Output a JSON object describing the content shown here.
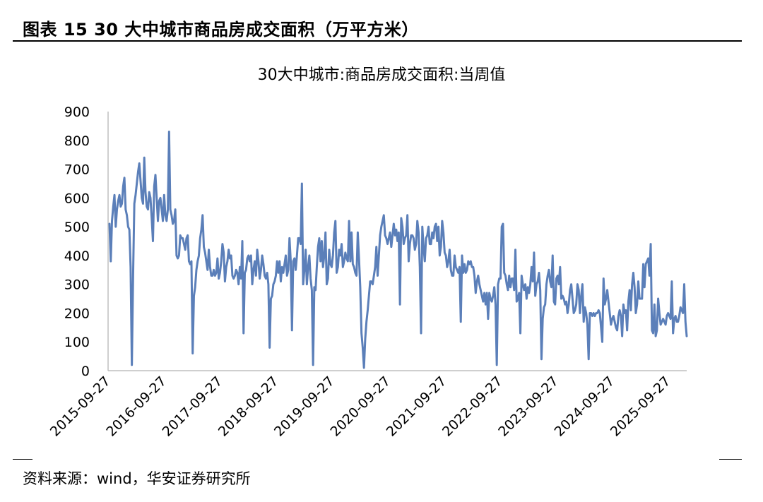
{
  "figure": {
    "title": "图表 15 30 大中城市商品房成交面积（万平方米）",
    "source": "资料来源：wind，华安证券研究所"
  },
  "chart_data": {
    "type": "line",
    "title": "30大中城市:商品房成交面积:当周值",
    "xlabel": "",
    "ylabel": "",
    "ylim": [
      0,
      900
    ],
    "yticks": [
      0,
      100,
      200,
      300,
      400,
      500,
      600,
      700,
      800,
      900
    ],
    "xticks": [
      "2015-09-27",
      "2016-09-27",
      "2017-09-27",
      "2018-09-27",
      "2019-09-27",
      "2020-09-27",
      "2021-09-27",
      "2022-09-27",
      "2023-09-27",
      "2024-09-27",
      "2025-09-27"
    ],
    "x_start": "2015-09-27",
    "x_end": "2026-01-25",
    "grid": false,
    "legend": "none",
    "colors": {
      "line": "#5b7fb9",
      "axis": "#bfbfbf"
    },
    "series": [
      {
        "values": [
          510,
          380,
          520,
          570,
          610,
          500,
          560,
          590,
          610,
          570,
          580,
          640,
          670,
          560,
          540,
          500,
          490,
          360,
          20,
          330,
          580,
          610,
          650,
          690,
          720,
          660,
          600,
          580,
          740,
          620,
          570,
          560,
          620,
          600,
          530,
          450,
          640,
          680,
          600,
          520,
          590,
          600,
          560,
          520,
          610,
          540,
          520,
          560,
          830,
          560,
          540,
          510,
          520,
          560,
          400,
          390,
          400,
          470,
          460,
          460,
          440,
          420,
          460,
          470,
          380,
          370,
          380,
          60,
          260,
          290,
          350,
          380,
          400,
          460,
          490,
          540,
          430,
          410,
          380,
          350,
          420,
          360,
          330,
          330,
          350,
          330,
          340,
          390,
          320,
          340,
          380,
          440,
          410,
          310,
          360,
          380,
          420,
          390,
          400,
          330,
          320,
          330,
          350,
          340,
          300,
          360,
          320,
          450,
          130,
          340,
          350,
          390,
          400,
          380,
          400,
          300,
          350,
          380,
          330,
          420,
          380,
          320,
          350,
          400,
          370,
          330,
          320,
          340,
          300,
          80,
          250,
          260,
          300,
          310,
          330,
          380,
          340,
          380,
          310,
          360,
          340,
          370,
          400,
          330,
          350,
          460,
          380,
          140,
          380,
          390,
          350,
          400,
          460,
          460,
          440,
          650,
          300,
          350,
          420,
          300,
          360,
          400,
          320,
          280,
          20,
          290,
          280,
          360,
          430,
          460,
          380,
          450,
          360,
          400,
          480,
          300,
          320,
          420,
          370,
          360,
          400,
          480,
          520,
          340,
          360,
          420,
          400,
          440,
          360,
          380,
          410,
          390,
          380,
          520,
          380,
          480,
          370,
          360,
          340,
          330,
          480,
          390,
          290,
          130,
          80,
          10,
          110,
          170,
          210,
          260,
          310,
          310,
          300,
          330,
          360,
          430,
          330,
          400,
          470,
          500,
          520,
          540,
          470,
          460,
          440,
          460,
          480,
          430,
          470,
          510,
          470,
          490,
          450,
          480,
          230,
          530,
          500,
          440,
          460,
          470,
          540,
          380,
          440,
          470,
          470,
          460,
          420,
          440,
          520,
          480,
          360,
          130,
          500,
          430,
          380,
          460,
          470,
          500,
          440,
          440,
          480,
          460,
          500,
          510,
          450,
          500,
          400,
          430,
          520,
          480,
          410,
          400,
          360,
          380,
          420,
          350,
          330,
          330,
          400,
          360,
          350,
          340,
          360,
          170,
          400,
          340,
          370,
          340,
          350,
          380,
          370,
          380,
          360,
          360,
          330,
          270,
          310,
          330,
          300,
          280,
          260,
          240,
          270,
          230,
          270,
          180,
          270,
          250,
          240,
          260,
          290,
          230,
          20,
          300,
          320,
          320,
          500,
          510,
          340,
          330,
          300,
          280,
          330,
          290,
          320,
          320,
          280,
          420,
          240,
          250,
          270,
          130,
          330,
          300,
          280,
          300,
          250,
          290,
          270,
          300,
          360,
          310,
          410,
          260,
          300,
          310,
          340,
          280,
          40,
          180,
          220,
          230,
          300,
          330,
          350,
          310,
          290,
          400,
          240,
          230,
          320,
          330,
          300,
          360,
          250,
          260,
          250,
          230,
          240,
          200,
          230,
          280,
          300,
          250,
          200,
          210,
          230,
          300,
          280,
          200,
          260,
          300,
          170,
          220,
          200,
          160,
          40,
          200,
          200,
          190,
          200,
          190,
          200,
          200,
          210,
          200,
          150,
          100,
          320,
          230,
          250,
          280,
          240,
          200,
          160,
          180,
          190,
          170,
          150,
          140,
          190,
          210,
          190,
          120,
          230,
          200,
          210,
          140,
          240,
          280,
          210,
          300,
          340,
          290,
          200,
          230,
          310,
          250,
          250,
          250,
          370,
          290,
          370,
          380,
          390,
          330,
          440,
          140,
          130,
          230,
          120,
          140,
          250,
          200,
          160,
          170,
          180,
          170,
          160,
          190,
          200,
          190,
          180,
          310,
          130,
          180,
          190,
          170,
          170,
          190,
          220,
          210,
          200,
          300,
          170,
          120
        ]
      }
    ]
  }
}
